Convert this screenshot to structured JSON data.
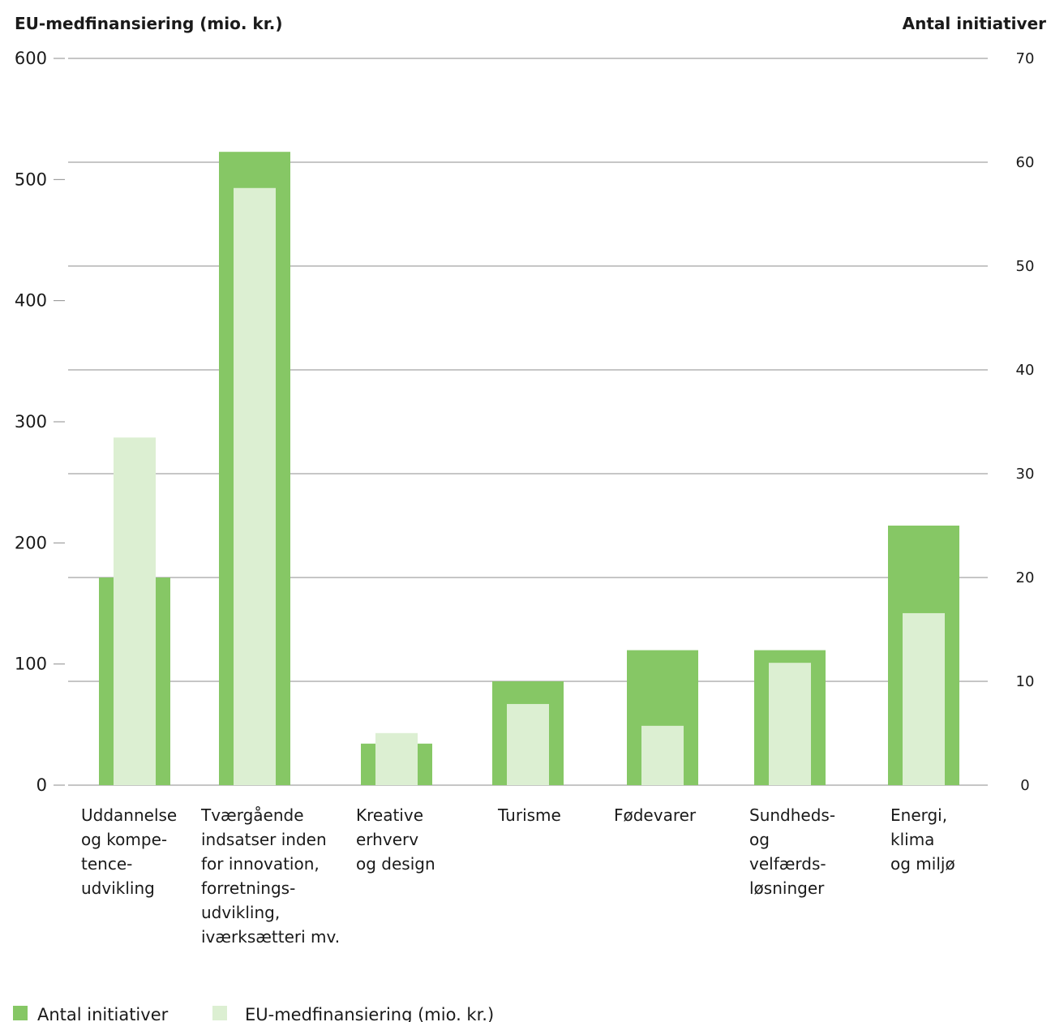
{
  "chart_data": {
    "type": "bar",
    "categories": [
      [
        "Uddannelse",
        "og kompe-",
        "tence-",
        "udvikling"
      ],
      [
        "Tværgående",
        "indsatser inden",
        "for innovation,",
        "forretnings-",
        "udvikling,",
        "iværksætteri mv."
      ],
      [
        "Kreative",
        "erhverv",
        "og design"
      ],
      [
        "Turisme"
      ],
      [
        "Fødevarer"
      ],
      [
        "Sundheds-",
        "og",
        "velfærds-",
        "løsninger"
      ],
      [
        "Energi,",
        "klima",
        "og miljø"
      ]
    ],
    "y_left": {
      "label": "EU-medfinansiering (mio. kr.)",
      "range": [
        0,
        600
      ],
      "ticks": [
        "0",
        "100",
        "200",
        "300",
        "400",
        "500",
        "600"
      ]
    },
    "y_right": {
      "label": "Antal initiativer",
      "range": [
        0,
        70
      ],
      "ticks": [
        "0",
        "10",
        "20",
        "30",
        "40",
        "50",
        "60",
        "70"
      ]
    },
    "series": [
      {
        "name": "Antal initiativer",
        "axis": "right",
        "color": "#86c765",
        "values": [
          20,
          61,
          4,
          10,
          13,
          13,
          25
        ]
      },
      {
        "name": "EU-medfinansiering (mio. kr.)",
        "axis": "left",
        "color": "#dcefd2",
        "values": [
          287,
          493,
          43,
          67,
          49,
          101,
          142
        ]
      }
    ],
    "grid": true,
    "legend_position": "bottom-left"
  }
}
